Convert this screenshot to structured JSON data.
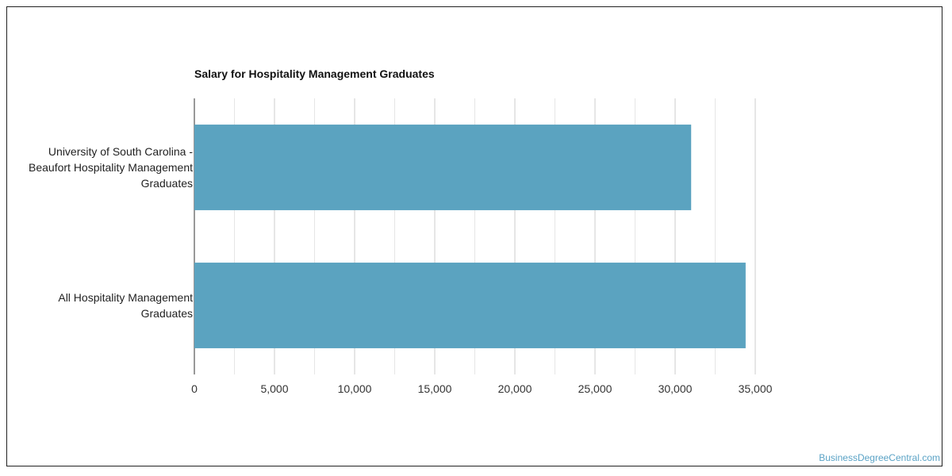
{
  "chart_data": {
    "type": "bar",
    "orientation": "horizontal",
    "title": "Salary for Hospitality Management Graduates",
    "categories": [
      "University of South Carolina -\nBeaufort Hospitality Management\nGraduates",
      "All Hospitality Management\nGraduates"
    ],
    "values": [
      31000,
      34400
    ],
    "xlim": [
      0,
      35000
    ],
    "xticks": [
      "0",
      "5,000",
      "10,000",
      "15,000",
      "20,000",
      "25,000",
      "30,000",
      "35,000"
    ],
    "xlabel": "",
    "ylabel": "",
    "grid": true,
    "legend": "none",
    "bar_color": "#5ba3c0"
  },
  "watermark": "BusinessDegreeCentral.com"
}
